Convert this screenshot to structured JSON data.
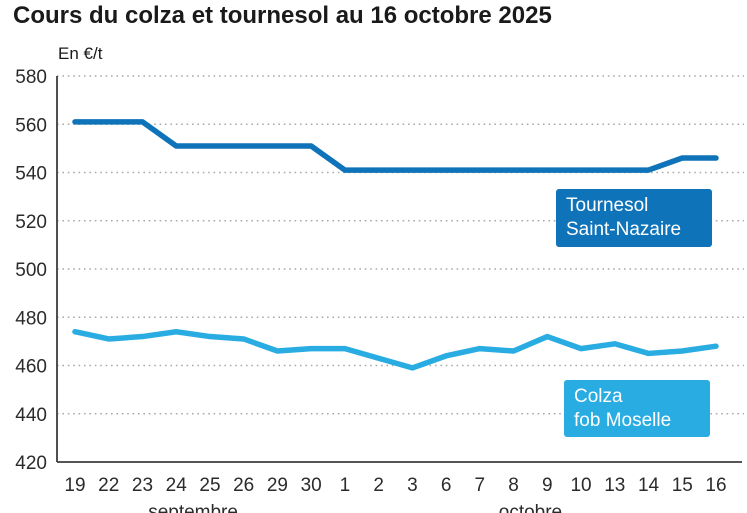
{
  "title": "Cours du colza et tournesol au 16 octobre 2025",
  "chart_data": {
    "type": "line",
    "title": "Cours du colza et tournesol au 16 octobre 2025",
    "unit_label": "En €/t",
    "xlabel": "",
    "ylabel": "En €/t",
    "categories": [
      "19",
      "22",
      "23",
      "24",
      "25",
      "26",
      "29",
      "30",
      "1",
      "2",
      "3",
      "6",
      "7",
      "8",
      "9",
      "10",
      "13",
      "14",
      "15",
      "16"
    ],
    "month_groups": [
      {
        "label": "septembre",
        "start": 0,
        "end": 7
      },
      {
        "label": "octobre",
        "start": 8,
        "end": 19
      }
    ],
    "y_axis": {
      "min": 420,
      "max": 580,
      "step": 20,
      "ticks": [
        580,
        560,
        540,
        520,
        500,
        480,
        460,
        440,
        420
      ]
    },
    "grid": "horizontal-dotted",
    "legend_position": "inside-right",
    "series": [
      {
        "name": "Tournesol Saint-Nazaire",
        "legend_line1": "Tournesol",
        "legend_line2": "Saint-Nazaire",
        "color": "#0F73B9",
        "values": [
          561,
          561,
          561,
          551,
          551,
          551,
          551,
          551,
          541,
          541,
          541,
          541,
          541,
          541,
          541,
          541,
          541,
          541,
          546,
          546
        ]
      },
      {
        "name": "Colza fob Moselle",
        "legend_line1": "Colza",
        "legend_line2": "fob Moselle",
        "color": "#29ACE2",
        "values": [
          474,
          471,
          472,
          474,
          472,
          471,
          466,
          467,
          467,
          463,
          459,
          464,
          467,
          466,
          472,
          467,
          469,
          465,
          466,
          468
        ]
      }
    ]
  },
  "colors": {
    "tournesol_line": "#0F73B9",
    "colza_line": "#29ACE2",
    "title_text": "#1a1a1a",
    "tick_text": "#2b2b2b",
    "gridline": "#a9a9a9",
    "axis": "#3d3d3d"
  }
}
